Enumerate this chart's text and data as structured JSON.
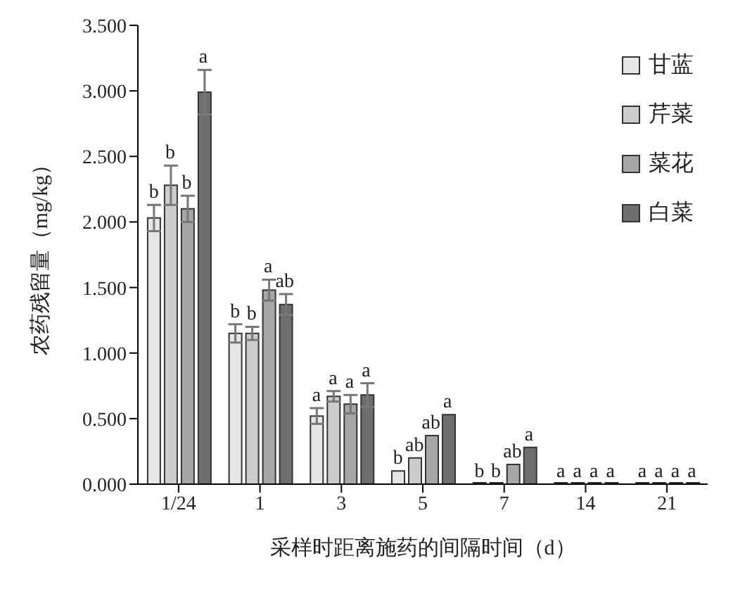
{
  "chart_data": {
    "type": "bar",
    "xlabel": "采样时距离施药的间隔时间（d）",
    "ylabel": "农药残留量（mg/kg）",
    "categories": [
      "1/24",
      "1",
      "3",
      "5",
      "7",
      "14",
      "21"
    ],
    "series": [
      {
        "name": "甘蓝",
        "color": "#e6e6e6",
        "values": [
          2.03,
          1.15,
          0.52,
          0.1,
          0,
          0,
          0
        ],
        "errors": [
          0.1,
          0.07,
          0.06,
          null,
          null,
          null,
          null
        ],
        "value_labels": [
          "b",
          "b",
          "a",
          "b",
          "b",
          "a",
          "a"
        ]
      },
      {
        "name": "芹菜",
        "color": "#cccccc",
        "values": [
          2.28,
          1.15,
          0.67,
          0.2,
          0,
          0,
          0
        ],
        "errors": [
          0.15,
          0.05,
          0.04,
          null,
          null,
          null,
          null
        ],
        "value_labels": [
          "b",
          "b",
          "a",
          "ab",
          "b",
          "a",
          "a"
        ]
      },
      {
        "name": "菜花",
        "color": "#a6a6a6",
        "values": [
          2.1,
          1.48,
          0.61,
          0.37,
          0.15,
          0,
          0
        ],
        "errors": [
          0.1,
          0.08,
          0.07,
          null,
          null,
          null,
          null
        ],
        "value_labels": [
          "b",
          "a",
          "a",
          "ab",
          "ab",
          "a",
          "a"
        ]
      },
      {
        "name": "白菜",
        "color": "#6e6e6e",
        "values": [
          2.99,
          1.37,
          0.68,
          0.53,
          0.28,
          0,
          0
        ],
        "errors": [
          0.17,
          0.08,
          0.09,
          null,
          null,
          null,
          null
        ],
        "value_labels": [
          "a",
          "ab",
          "a",
          "a",
          "a",
          "a",
          "a"
        ]
      }
    ],
    "ylim": [
      0,
      3.5
    ],
    "yticks": [
      {
        "value": 0,
        "label": "0.000"
      },
      {
        "value": 0.5,
        "label": "0.500"
      },
      {
        "value": 1,
        "label": "1.000"
      },
      {
        "value": 1.5,
        "label": "1.500"
      },
      {
        "value": 2,
        "label": "2.000"
      },
      {
        "value": 2.5,
        "label": "2.500"
      },
      {
        "value": 3,
        "label": "3.000"
      },
      {
        "value": 3.5,
        "label": "3.500"
      }
    ],
    "grid": false,
    "legend": "top right"
  }
}
